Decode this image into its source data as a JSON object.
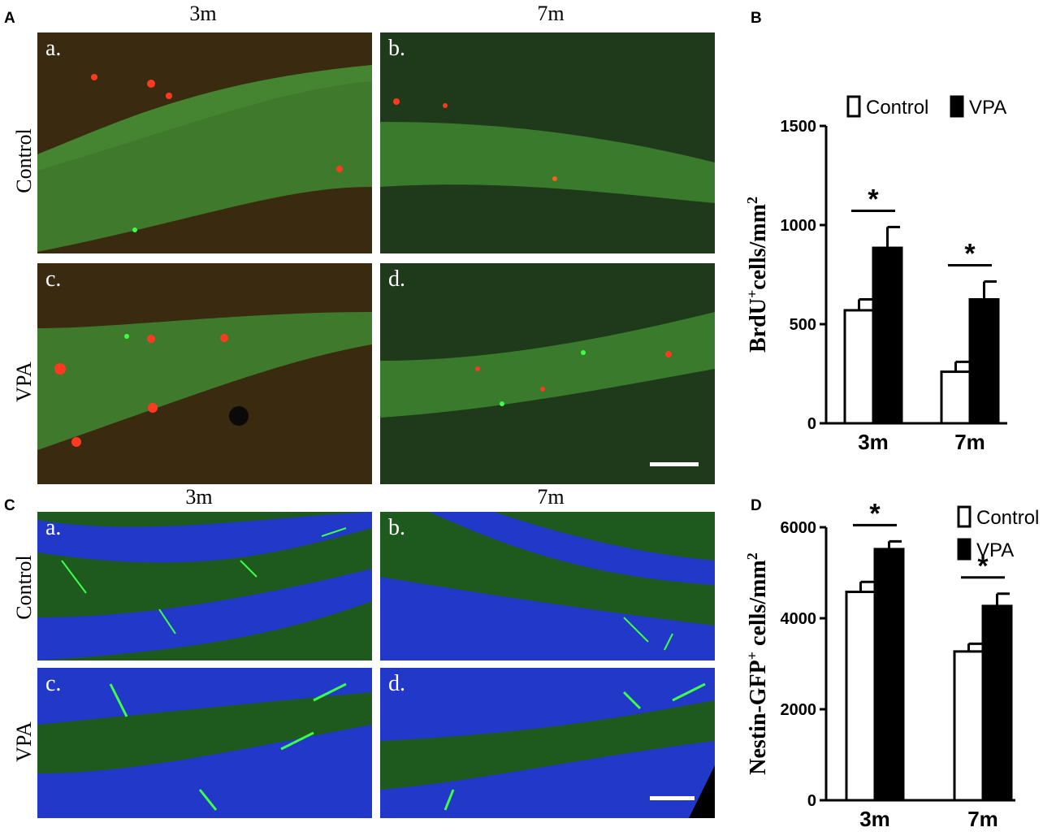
{
  "panels": {
    "A": {
      "label": "A",
      "col_labels": [
        "3m",
        "7m"
      ],
      "row_labels": [
        "Control",
        "VPA"
      ],
      "subpanels": [
        "a.",
        "b.",
        "c.",
        "d."
      ],
      "colors": {
        "cells": "#ff2a1a",
        "background": "#2d6a24"
      }
    },
    "B": {
      "label": "B"
    },
    "C": {
      "label": "C",
      "col_labels": [
        "3m",
        "7m"
      ],
      "row_labels": [
        "Control",
        "VPA"
      ],
      "subpanels": [
        "a.",
        "b.",
        "c.",
        "d."
      ],
      "colors": {
        "nuclei": "#1a32d8",
        "cells": "#3cff46",
        "background": "#1e5a1e"
      }
    },
    "D": {
      "label": "D"
    }
  },
  "chart_data": [
    {
      "type": "bar",
      "panel": "B",
      "categories": [
        "3m",
        "7m"
      ],
      "series": [
        {
          "name": "Control",
          "values": [
            570,
            260
          ],
          "errors": [
            55,
            50
          ],
          "fill": "#ffffff"
        },
        {
          "name": "VPA",
          "values": [
            885,
            625
          ],
          "errors": [
            105,
            90
          ],
          "fill": "#000000"
        }
      ],
      "ylabel_main": "BrdU",
      "ylabel_sup": "+",
      "ylabel_rest": "cells/mm",
      "ylabel_exp": "2",
      "ylim": [
        0,
        1500
      ],
      "yticks": [
        0,
        500,
        1000,
        1500
      ],
      "significance": [
        "*",
        "*"
      ],
      "legend": "top"
    },
    {
      "type": "bar",
      "panel": "D",
      "categories": [
        "3m",
        "7m"
      ],
      "series": [
        {
          "name": "Control",
          "values": [
            4580,
            3270
          ],
          "errors": [
            220,
            170
          ],
          "fill": "#ffffff"
        },
        {
          "name": "VPA",
          "values": [
            5520,
            4270
          ],
          "errors": [
            170,
            270
          ],
          "fill": "#000000"
        }
      ],
      "ylabel_main": "Nestin-GFP",
      "ylabel_sup": "+",
      "ylabel_rest": " cells/mm",
      "ylabel_exp": "2",
      "ylim": [
        0,
        6000
      ],
      "yticks": [
        0,
        2000,
        4000,
        6000
      ],
      "significance": [
        "*",
        "*"
      ],
      "legend": "top-right"
    }
  ]
}
